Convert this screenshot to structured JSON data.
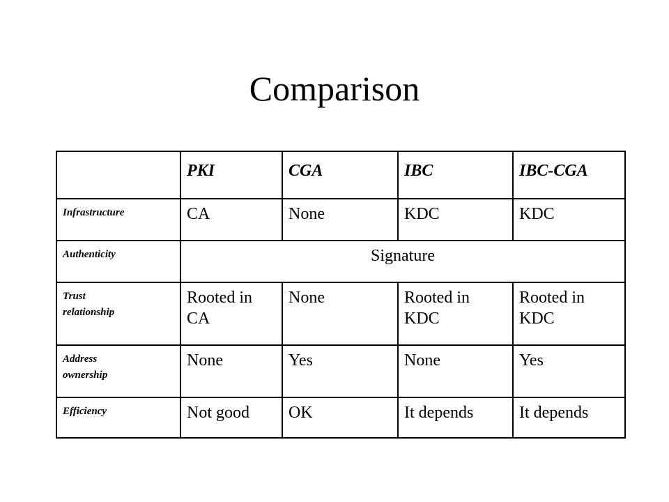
{
  "header": {
    "title": "Comparison"
  },
  "table": {
    "columns": [
      "PKI",
      "CGA",
      "IBC",
      "IBC-CGA"
    ],
    "rows": [
      {
        "label": "Infrastructure",
        "cells": [
          "CA",
          "None",
          "KDC",
          "KDC"
        ]
      },
      {
        "label": "Authenticity",
        "cells": [
          "Signature"
        ]
      },
      {
        "label": "Trust\nrelationship",
        "cells": [
          "Rooted in\nCA",
          "None",
          "Rooted in\nKDC",
          "Rooted in\nKDC"
        ]
      },
      {
        "label": "Address\nownership",
        "cells": [
          "None",
          "Yes",
          "None",
          "Yes"
        ]
      },
      {
        "label": "Efficiency",
        "cells": [
          "Not good",
          "OK",
          "It depends",
          "It depends"
        ]
      }
    ]
  }
}
